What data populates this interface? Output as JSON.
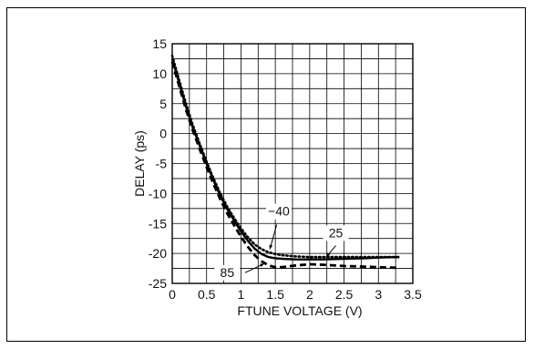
{
  "chart_data": {
    "type": "line",
    "xlabel": "FTUNE VOLTAGE (V)",
    "ylabel": "DELAY (ps)",
    "xlim": [
      0,
      3.5
    ],
    "ylim": [
      -25,
      15
    ],
    "grid": true,
    "x_ticks": [
      "0",
      "0.5",
      "1",
      "1.5",
      "2",
      "2.5",
      "3",
      "3.5"
    ],
    "y_ticks": [
      "15",
      "10",
      "5",
      "0",
      "-5",
      "-10",
      "-15",
      "-20",
      "-25"
    ],
    "series": [
      {
        "name": "25",
        "style": "solid",
        "x": [
          0,
          0.1,
          0.2,
          0.3,
          0.4,
          0.5,
          0.6,
          0.7,
          0.8,
          0.9,
          1.0,
          1.1,
          1.2,
          1.3,
          1.4,
          1.5,
          1.6,
          1.8,
          2.0,
          2.2,
          2.5,
          2.8,
          3.0,
          3.3
        ],
        "values": [
          12.5,
          8.5,
          4.5,
          1.0,
          -2.0,
          -5.0,
          -7.8,
          -10.4,
          -12.6,
          -14.5,
          -16.3,
          -17.9,
          -19.2,
          -20.1,
          -20.6,
          -20.8,
          -20.9,
          -21.0,
          -21.0,
          -21.0,
          -20.9,
          -20.8,
          -20.7,
          -20.6
        ]
      },
      {
        "name": "−40",
        "style": "dotted",
        "x": [
          0,
          0.1,
          0.2,
          0.3,
          0.4,
          0.5,
          0.6,
          0.7,
          0.8,
          0.9,
          1.0,
          1.1,
          1.2,
          1.3,
          1.4,
          1.5,
          1.6,
          1.8,
          2.0,
          2.2,
          2.5,
          2.8,
          3.0,
          3.3
        ],
        "values": [
          13.0,
          9.0,
          5.0,
          1.4,
          -1.7,
          -4.7,
          -7.5,
          -10.0,
          -12.2,
          -14.1,
          -15.8,
          -17.3,
          -18.5,
          -19.3,
          -19.8,
          -20.1,
          -20.3,
          -20.5,
          -20.6,
          -20.6,
          -20.6,
          -20.6,
          -20.6,
          -20.6
        ]
      },
      {
        "name": "85",
        "style": "dashed",
        "x": [
          0,
          0.1,
          0.2,
          0.3,
          0.4,
          0.5,
          0.6,
          0.7,
          0.8,
          0.9,
          1.0,
          1.1,
          1.2,
          1.3,
          1.4,
          1.5,
          1.6,
          1.8,
          2.0,
          2.2,
          2.5,
          2.8,
          3.0,
          3.3
        ],
        "values": [
          12.0,
          8.0,
          4.0,
          0.5,
          -2.6,
          -5.6,
          -8.4,
          -11.0,
          -13.3,
          -15.3,
          -17.2,
          -18.9,
          -20.3,
          -21.3,
          -22.0,
          -22.3,
          -22.3,
          -22.0,
          -21.8,
          -21.9,
          -22.1,
          -22.2,
          -22.3,
          -22.4
        ]
      }
    ],
    "annotations": [
      {
        "text": "−40",
        "series": "−40"
      },
      {
        "text": "25",
        "series": "25"
      },
      {
        "text": "85",
        "series": "85"
      }
    ]
  }
}
